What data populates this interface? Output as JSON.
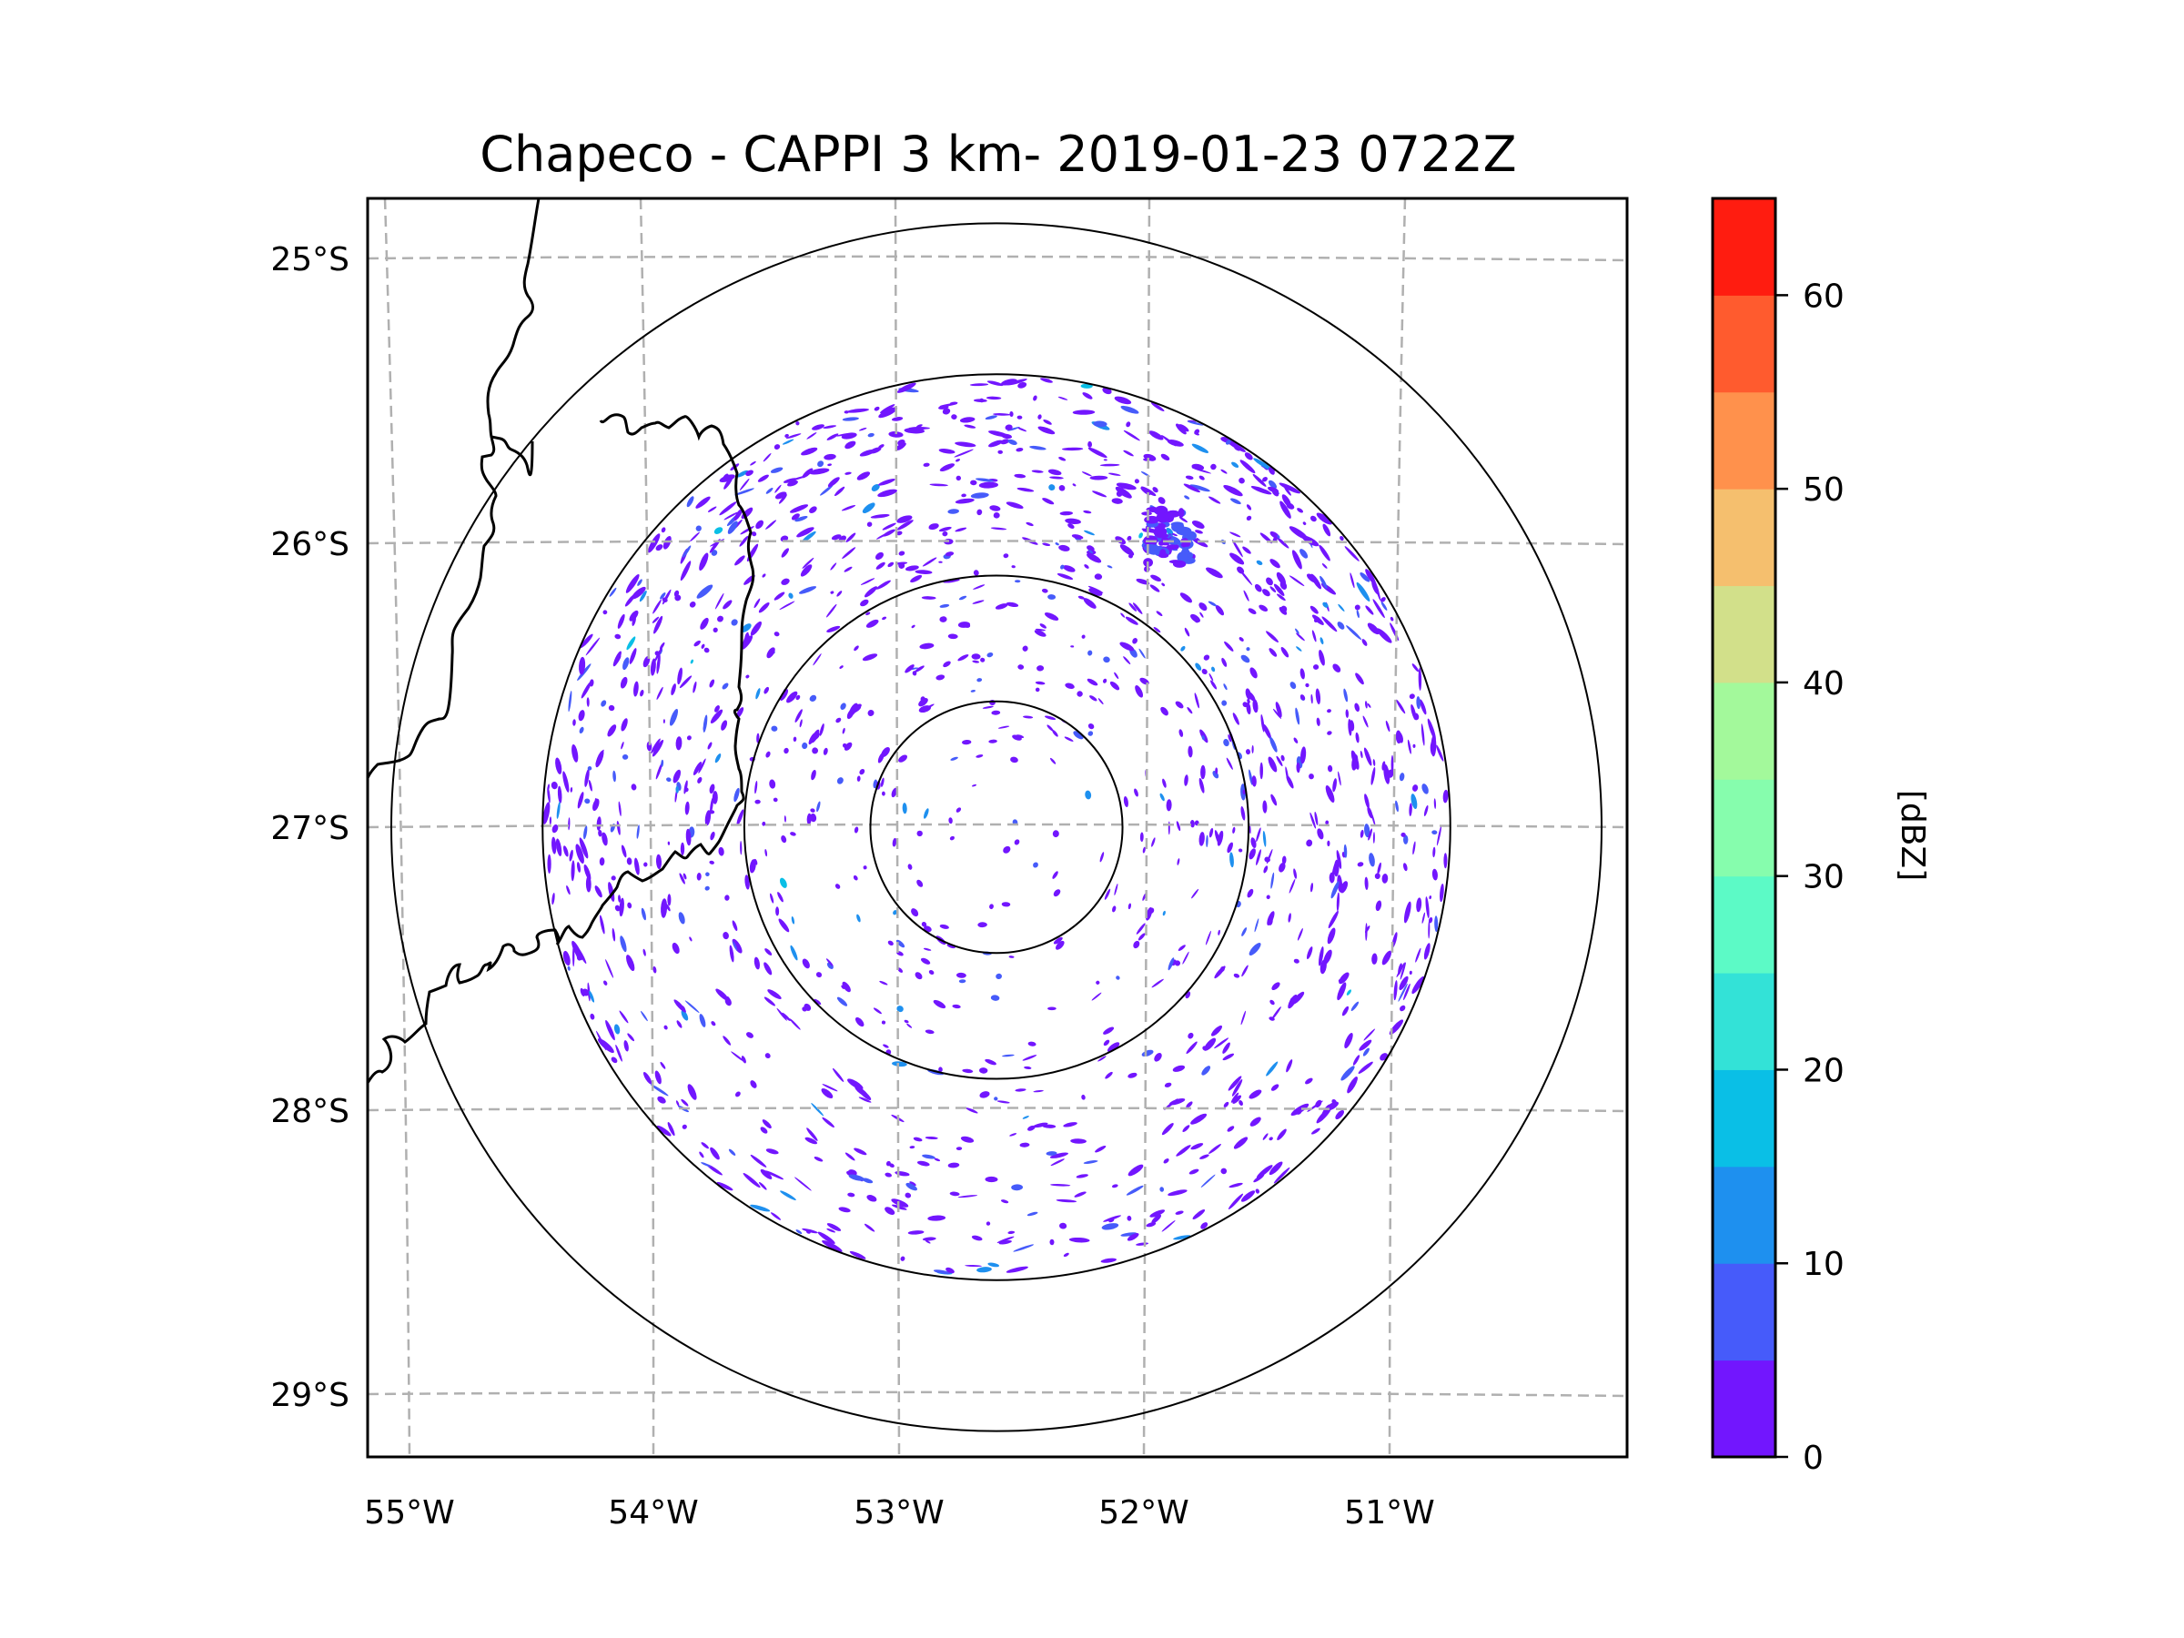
{
  "chart_data": {
    "type": "heatmap",
    "subtype": "radar-ppi-map",
    "title": "Chapeco - CAPPI 3 km- 2019-01-23 0722Z",
    "radar_site": "Chapeco",
    "product": "CAPPI 3 km",
    "datetime": "2019-01-23 0722Z",
    "radar_center": {
      "lon": -52.6,
      "lat": -27.02
    },
    "range_rings_km": [
      100,
      200,
      360,
      480
    ],
    "x_axis": {
      "ticks": [
        -55,
        -54,
        -53,
        -52,
        -51
      ],
      "tick_labels": [
        "55°W",
        "54°W",
        "53°W",
        "52°W",
        "51°W"
      ],
      "range": [
        -55.2,
        -50.1
      ]
    },
    "y_axis": {
      "ticks": [
        -25,
        -26,
        -27,
        -28,
        -29
      ],
      "tick_labels": [
        "25°S",
        "26°S",
        "27°S",
        "28°S",
        "29°S"
      ],
      "range": [
        -29.3,
        -24.8
      ]
    },
    "gridlines": {
      "style": "dashed",
      "color": "#b0b0b0"
    },
    "colorbar": {
      "label": "[dBZ]",
      "range": [
        0,
        65
      ],
      "bin_width": 5,
      "ticks": [
        0,
        10,
        20,
        30,
        40,
        50,
        60
      ],
      "tick_labels": [
        "0",
        "10",
        "20",
        "30",
        "40",
        "50",
        "60"
      ],
      "colors": [
        "#7216fe",
        "#465bfa",
        "#1e90ef",
        "#0abfe6",
        "#33e2d7",
        "#5cfac6",
        "#86fdad",
        "#a3f99b",
        "#d2e08a",
        "#f5bf6e",
        "#ff914c",
        "#ff5b2e",
        "#ff1c10"
      ]
    },
    "echo_summary": {
      "dominant_range_dbz": [
        0,
        10
      ],
      "max_observed_dbz": 20,
      "distribution": "scattered weak echoes (clutter/clear-air) filling the 200 km ring; denser toward north and around the 360 km ring edge"
    }
  }
}
